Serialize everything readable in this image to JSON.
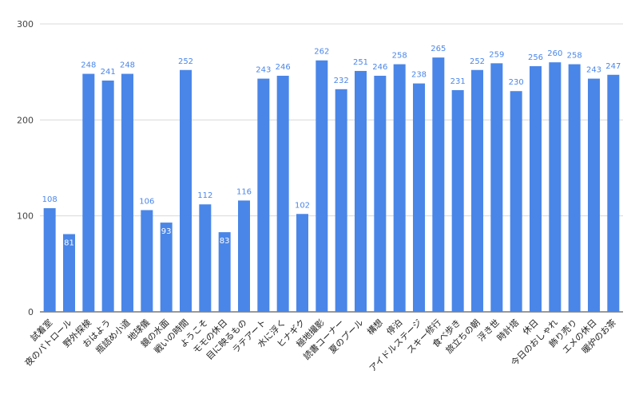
{
  "chart_data": {
    "type": "bar",
    "categories": [
      "試着室",
      "夜のパトロール",
      "野外探検",
      "おはよう",
      "瓶詰め小道",
      "地球儀",
      "鏡の水面",
      "戦いの時間",
      "ようこそ",
      "モモの休日",
      "目に映るもの",
      "ラテアート",
      "水に浮く",
      "ヒナギク",
      "極地撮影",
      "読書コーナー",
      "夏のプール",
      "構想",
      "停泊",
      "アイドルステージ",
      "スキー修行",
      "食べ歩き",
      "旅立ちの朝",
      "浮き世",
      "時計塔",
      "休日",
      "今日のおしゃれ",
      "飾り売り",
      "エメの休日",
      "暖炉のお茶"
    ],
    "values": [
      108,
      81,
      248,
      241,
      248,
      106,
      93,
      252,
      112,
      83,
      116,
      243,
      246,
      102,
      262,
      232,
      251,
      246,
      258,
      238,
      265,
      231,
      252,
      259,
      230,
      256,
      260,
      258,
      243,
      247
    ],
    "ylim": [
      0,
      300
    ],
    "yticks": [
      0,
      100,
      200,
      300
    ],
    "title": "",
    "xlabel": "",
    "ylabel": "",
    "grid": true,
    "legend": "none",
    "bar_color": "#4a86e8",
    "label_color": "#4a86e8"
  }
}
